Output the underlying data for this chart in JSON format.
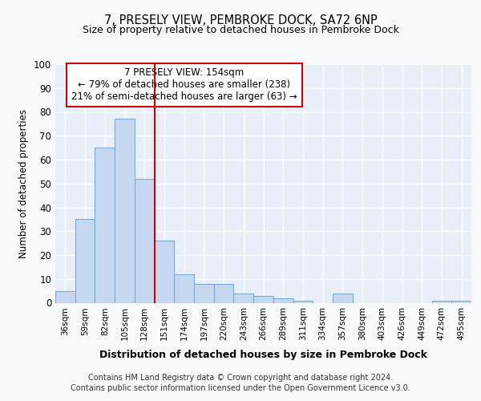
{
  "title1": "7, PRESELY VIEW, PEMBROKE DOCK, SA72 6NP",
  "title2": "Size of property relative to detached houses in Pembroke Dock",
  "xlabel": "Distribution of detached houses by size in Pembroke Dock",
  "ylabel": "Number of detached properties",
  "categories": [
    "36sqm",
    "59sqm",
    "82sqm",
    "105sqm",
    "128sqm",
    "151sqm",
    "174sqm",
    "197sqm",
    "220sqm",
    "243sqm",
    "266sqm",
    "289sqm",
    "311sqm",
    "334sqm",
    "357sqm",
    "380sqm",
    "403sqm",
    "426sqm",
    "449sqm",
    "472sqm",
    "495sqm"
  ],
  "values": [
    5,
    35,
    65,
    77,
    52,
    26,
    12,
    8,
    8,
    4,
    3,
    2,
    1,
    0,
    4,
    0,
    0,
    0,
    0,
    1,
    1
  ],
  "bar_color": "#c5d8f0",
  "bar_edge_color": "#7aacda",
  "annotation_box_text": "7 PRESELY VIEW: 154sqm\n← 79% of detached houses are smaller (238)\n21% of semi-detached houses are larger (63) →",
  "annotation_box_color": "#ffffff",
  "annotation_box_edge_color": "#cc0000",
  "vline_x": 5,
  "vline_color": "#cc0000",
  "ylim": [
    0,
    100
  ],
  "yticks": [
    0,
    10,
    20,
    30,
    40,
    50,
    60,
    70,
    80,
    90,
    100
  ],
  "footer1": "Contains HM Land Registry data © Crown copyright and database right 2024.",
  "footer2": "Contains public sector information licensed under the Open Government Licence v3.0.",
  "fig_bg_color": "#f7f9fd",
  "plot_bg_color": "#e8eff8"
}
